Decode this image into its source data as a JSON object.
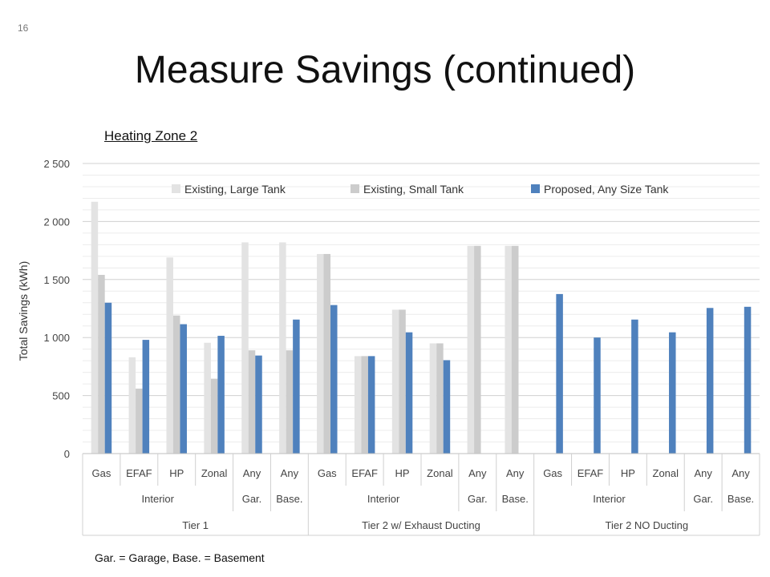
{
  "slide": {
    "number": "16",
    "title": "Measure Savings (continued)",
    "footnote": "Gar. = Garage, Base. = Basement"
  },
  "colors": {
    "existing_large": "#e3e3e3",
    "existing_small": "#cccccc",
    "proposed": "#4f81bd",
    "grid": "#d9d9d9",
    "axis_text": "#444444"
  },
  "chart_data": {
    "type": "bar",
    "title": "Heating Zone 2",
    "ylabel": "Total Savings (kWh)",
    "xlabel": "",
    "ylim": [
      0,
      2500
    ],
    "yticks": [
      0,
      500,
      1000,
      1500,
      2000,
      2500
    ],
    "ytick_labels": [
      "0",
      "500",
      "1 000",
      "1 500",
      "2 000",
      "2 500"
    ],
    "grid": true,
    "legend_position": "top",
    "categories": [
      "Gas",
      "EFAF",
      "HP",
      "Zonal",
      "Any",
      "Any",
      "Gas",
      "EFAF",
      "HP",
      "Zonal",
      "Any",
      "Any",
      "Gas",
      "EFAF",
      "HP",
      "Zonal",
      "Any",
      "Any"
    ],
    "category_groups": [
      {
        "label": "Interior",
        "span": 4
      },
      {
        "label": "Gar.",
        "span": 1
      },
      {
        "label": "Base.",
        "span": 1
      },
      {
        "label": "Interior",
        "span": 4
      },
      {
        "label": "Gar.",
        "span": 1
      },
      {
        "label": "Base.",
        "span": 1
      },
      {
        "label": "Interior",
        "span": 4
      },
      {
        "label": "Gar.",
        "span": 1
      },
      {
        "label": "Base.",
        "span": 1
      }
    ],
    "tiers": [
      {
        "label": "Tier 1",
        "span": 6
      },
      {
        "label": "Tier 2 w/ Exhaust Ducting",
        "span": 6
      },
      {
        "label": "Tier 2 NO Ducting",
        "span": 6
      }
    ],
    "series": [
      {
        "name": "Existing, Large Tank",
        "color_key": "existing_large",
        "values": [
          2170,
          830,
          1690,
          955,
          1820,
          1820,
          1720,
          840,
          1240,
          950,
          1790,
          1790,
          null,
          null,
          null,
          null,
          null,
          null
        ]
      },
      {
        "name": "Existing, Small Tank",
        "color_key": "existing_small",
        "values": [
          1540,
          560,
          1190,
          645,
          890,
          890,
          1720,
          840,
          1240,
          950,
          1790,
          1790,
          null,
          null,
          null,
          null,
          null,
          null
        ]
      },
      {
        "name": "Proposed, Any Size Tank",
        "color_key": "proposed",
        "values": [
          1300,
          980,
          1115,
          1015,
          845,
          1155,
          1280,
          840,
          1045,
          805,
          null,
          null,
          1375,
          1000,
          1155,
          1045,
          1255,
          1265
        ]
      }
    ]
  }
}
